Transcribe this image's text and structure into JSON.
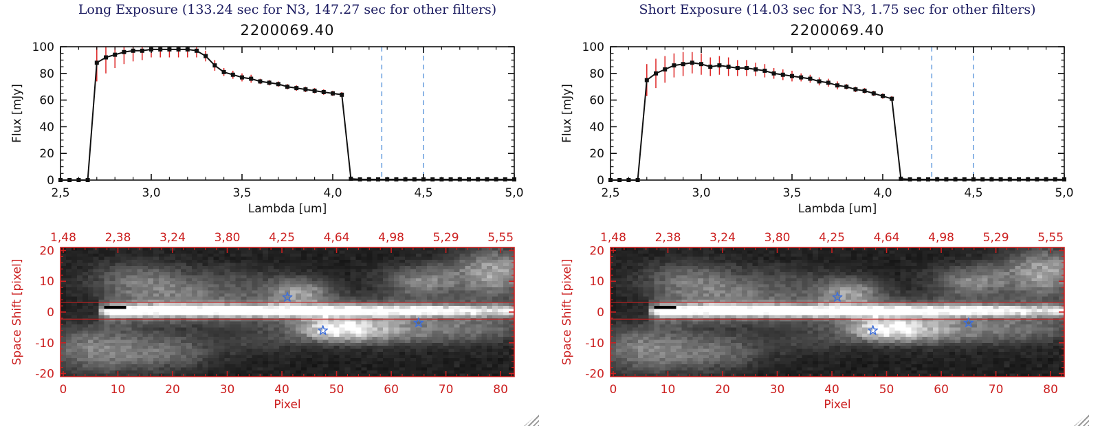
{
  "colors": {
    "title_navy": "#1b1b60",
    "axis_black": "#111111",
    "axis_red": "#cc2020",
    "error_red": "#dd2222",
    "dashed_blue": "#6fa3e0",
    "star_blue": "#3f6fd8",
    "marker_black": "#111111"
  },
  "panels": [
    {
      "title": "Long Exposure (133.24 sec for N3, 147.27 sec for other filters)",
      "object_id": "2200069.40"
    },
    {
      "title": "Short Exposure (14.03 sec for N3, 1.75 sec for other filters)",
      "object_id": "2200069.40"
    }
  ],
  "chart_data": [
    {
      "type": "line",
      "name": "spectrum-long",
      "title": "2200069.40",
      "xlabel": "Lambda [um]",
      "ylabel": "Flux [mJy]",
      "xlim": [
        2.5,
        5.0
      ],
      "ylim": [
        0,
        100
      ],
      "x_ticks": [
        2.5,
        3.0,
        3.5,
        4.0,
        4.5,
        5.0
      ],
      "x_tick_labels": [
        "2,5",
        "3,0",
        "3,5",
        "4,0",
        "4,5",
        "5,0"
      ],
      "y_ticks": [
        0,
        20,
        40,
        60,
        80,
        100
      ],
      "y_tick_labels": [
        "0",
        "20",
        "40",
        "60",
        "80",
        "100"
      ],
      "x_minor_step": 0.1,
      "y_minor_step": 5,
      "dashed_lines_x": [
        4.27,
        4.5
      ],
      "series": [
        {
          "name": "spectrum",
          "x": [
            2.5,
            2.55,
            2.6,
            2.65,
            2.7,
            2.75,
            2.8,
            2.85,
            2.9,
            2.95,
            3.0,
            3.05,
            3.1,
            3.15,
            3.2,
            3.25,
            3.3,
            3.35,
            3.4,
            3.45,
            3.5,
            3.55,
            3.6,
            3.65,
            3.7,
            3.75,
            3.8,
            3.85,
            3.9,
            3.95,
            4.0,
            4.05,
            4.1,
            4.15,
            4.2,
            4.25,
            4.3,
            4.35,
            4.4,
            4.45,
            4.5,
            4.55,
            4.6,
            4.65,
            4.7,
            4.75,
            4.8,
            4.85,
            4.9,
            4.95,
            5.0
          ],
          "y": [
            0,
            0,
            0,
            0,
            88,
            92,
            94,
            96,
            97,
            97,
            98,
            98,
            98,
            98,
            98,
            97,
            93,
            86,
            81,
            79,
            77,
            76,
            74,
            73,
            72,
            70,
            69,
            68,
            67,
            66,
            65,
            64,
            1,
            0.5,
            0.5,
            0.5,
            0.5,
            0.5,
            0.5,
            0.5,
            0.5,
            0.5,
            0.5,
            0.5,
            0.5,
            0.5,
            0.5,
            0.5,
            0.5,
            0.5,
            0.5
          ],
          "yerr": [
            0,
            0,
            0,
            0,
            14,
            12,
            10,
            9,
            8,
            7,
            6,
            6,
            6,
            6,
            6,
            5,
            4,
            4,
            3,
            3,
            3,
            3,
            2,
            2,
            2,
            2,
            2,
            2,
            2,
            2,
            2,
            2,
            1,
            1,
            1,
            1,
            1,
            1,
            1,
            1,
            1,
            1,
            1,
            1,
            1,
            1,
            1,
            1,
            1,
            1,
            1
          ]
        }
      ]
    },
    {
      "type": "line",
      "name": "spectrum-short",
      "title": "2200069.40",
      "xlabel": "Lambda [um]",
      "ylabel": "Flux [mJy]",
      "xlim": [
        2.5,
        5.0
      ],
      "ylim": [
        0,
        100
      ],
      "x_ticks": [
        2.5,
        3.0,
        3.5,
        4.0,
        4.5,
        5.0
      ],
      "x_tick_labels": [
        "2,5",
        "3,0",
        "3,5",
        "4,0",
        "4,5",
        "5,0"
      ],
      "y_ticks": [
        0,
        20,
        40,
        60,
        80,
        100
      ],
      "y_tick_labels": [
        "0",
        "20",
        "40",
        "60",
        "80",
        "100"
      ],
      "x_minor_step": 0.1,
      "y_minor_step": 5,
      "dashed_lines_x": [
        4.27,
        4.5
      ],
      "series": [
        {
          "name": "spectrum",
          "x": [
            2.5,
            2.55,
            2.6,
            2.65,
            2.7,
            2.75,
            2.8,
            2.85,
            2.9,
            2.95,
            3.0,
            3.05,
            3.1,
            3.15,
            3.2,
            3.25,
            3.3,
            3.35,
            3.4,
            3.45,
            3.5,
            3.55,
            3.6,
            3.65,
            3.7,
            3.75,
            3.8,
            3.85,
            3.9,
            3.95,
            4.0,
            4.05,
            4.1,
            4.15,
            4.2,
            4.25,
            4.3,
            4.35,
            4.4,
            4.45,
            4.5,
            4.55,
            4.6,
            4.65,
            4.7,
            4.75,
            4.8,
            4.85,
            4.9,
            4.95,
            5.0
          ],
          "y": [
            0,
            0,
            0,
            0,
            75,
            80,
            83,
            86,
            87,
            88,
            87,
            85,
            86,
            85,
            84,
            84,
            83,
            82,
            80,
            79,
            78,
            77,
            76,
            74,
            73,
            71,
            70,
            68,
            67,
            65,
            63,
            61,
            1,
            0.5,
            0.5,
            0.5,
            0.5,
            0.5,
            0.5,
            0.5,
            0.5,
            0.5,
            0.5,
            0.5,
            0.5,
            0.5,
            0.5,
            0.5,
            0.5,
            0.5,
            0.5
          ],
          "yerr": [
            0,
            0,
            0,
            0,
            12,
            11,
            10,
            9,
            9,
            8,
            8,
            7,
            7,
            7,
            6,
            6,
            5,
            5,
            4,
            4,
            4,
            3,
            3,
            3,
            3,
            3,
            2,
            2,
            2,
            2,
            2,
            2,
            1,
            1,
            1,
            1,
            1,
            1,
            1,
            1,
            1,
            1,
            1,
            1,
            1,
            1,
            1,
            1,
            1,
            1,
            1
          ]
        }
      ]
    },
    {
      "type": "heatmap",
      "name": "spectral-image-long",
      "xlabel": "Pixel",
      "ylabel": "Space Shift [pixel]",
      "xlim": [
        -0.5,
        82.5
      ],
      "ylim": [
        -21,
        21
      ],
      "x_ticks": [
        0,
        10,
        20,
        30,
        40,
        50,
        60,
        70,
        80
      ],
      "x_tick_labels": [
        "0",
        "10",
        "20",
        "30",
        "40",
        "50",
        "60",
        "70",
        "80"
      ],
      "top_axis_labels": [
        "1,48",
        "2,38",
        "3,24",
        "3,80",
        "4,25",
        "4,64",
        "4,98",
        "5,29",
        "5,55"
      ],
      "y_ticks": [
        -20,
        -10,
        0,
        10,
        20
      ],
      "y_tick_labels": [
        "-20",
        "-10",
        "0",
        "10",
        "20"
      ],
      "x_minor_step": 2,
      "y_minor_step": 2,
      "aperture_lines_y": [
        3.1,
        -2.3
      ],
      "stars": [
        [
          41,
          4.8
        ],
        [
          47.5,
          -6
        ],
        [
          65,
          -3.5
        ]
      ],
      "trace": {
        "x_start": 7,
        "y_center": 0.4,
        "sigma": 1.2,
        "halo_sigma": 3.2
      },
      "blobs": [
        [
          14,
          10,
          6,
          4,
          0.3
        ],
        [
          6,
          -12,
          6,
          5,
          0.36
        ],
        [
          19,
          -13,
          6,
          4,
          0.26
        ],
        [
          43,
          6.5,
          4,
          3,
          0.42
        ],
        [
          50,
          -5.5,
          5,
          2.6,
          0.8
        ],
        [
          59,
          -6,
          6,
          3,
          0.36
        ],
        [
          66,
          10,
          5,
          3.5,
          0.36
        ],
        [
          79,
          13,
          5,
          5,
          0.5
        ],
        [
          74,
          -6,
          7,
          3,
          0.26
        ],
        [
          30,
          9,
          8,
          4,
          0.14
        ],
        [
          36,
          -9,
          6,
          3,
          0.12
        ],
        [
          22,
          5,
          6,
          3,
          0.15
        ]
      ],
      "dark_marker": {
        "x": [
          7.5,
          11
        ],
        "y": [
          0.6,
          2.2
        ]
      }
    },
    {
      "type": "heatmap",
      "name": "spectral-image-short",
      "xlabel": "Pixel",
      "ylabel": "Space Shift [pixel]",
      "xlim": [
        -0.5,
        82.5
      ],
      "ylim": [
        -21,
        21
      ],
      "x_ticks": [
        0,
        10,
        20,
        30,
        40,
        50,
        60,
        70,
        80
      ],
      "x_tick_labels": [
        "0",
        "10",
        "20",
        "30",
        "40",
        "50",
        "60",
        "70",
        "80"
      ],
      "top_axis_labels": [
        "1,48",
        "2,38",
        "3,24",
        "3,80",
        "4,25",
        "4,64",
        "4,98",
        "5,29",
        "5,55"
      ],
      "y_ticks": [
        -20,
        -10,
        0,
        10,
        20
      ],
      "y_tick_labels": [
        "-20",
        "-10",
        "0",
        "10",
        "20"
      ],
      "x_minor_step": 2,
      "y_minor_step": 2,
      "aperture_lines_y": [
        3.1,
        -2.3
      ],
      "stars": [
        [
          41,
          4.8
        ],
        [
          47.5,
          -6
        ],
        [
          65,
          -3.5
        ]
      ],
      "trace": {
        "x_start": 7,
        "y_center": 0.4,
        "sigma": 1.2,
        "halo_sigma": 3.2
      },
      "blobs": [
        [
          14,
          10,
          6,
          4,
          0.3
        ],
        [
          6,
          -12,
          6,
          5,
          0.36
        ],
        [
          19,
          -13,
          6,
          4,
          0.26
        ],
        [
          43,
          6.5,
          4,
          3,
          0.42
        ],
        [
          50,
          -5.5,
          5,
          2.6,
          0.8
        ],
        [
          59,
          -6,
          6,
          3,
          0.36
        ],
        [
          66,
          10,
          5,
          3.5,
          0.36
        ],
        [
          79,
          13,
          5,
          5,
          0.5
        ],
        [
          74,
          -6,
          7,
          3,
          0.26
        ],
        [
          30,
          9,
          8,
          4,
          0.14
        ],
        [
          36,
          -9,
          6,
          3,
          0.12
        ],
        [
          22,
          5,
          6,
          3,
          0.15
        ]
      ],
      "dark_marker": {
        "x": [
          7.5,
          11
        ],
        "y": [
          0.6,
          2.2
        ]
      }
    }
  ]
}
